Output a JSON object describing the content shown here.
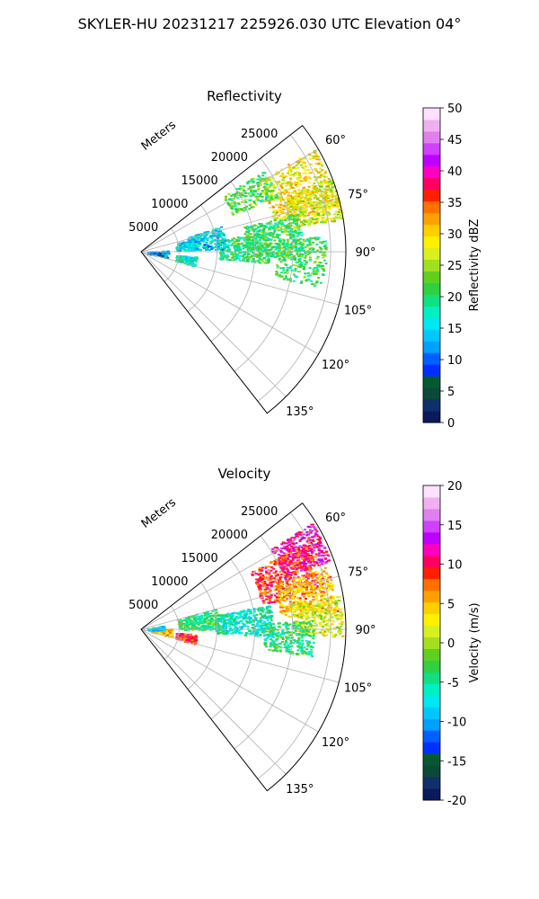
{
  "suptitle": "SKYLER-HU  20231217  225926.030 UTC Elevation 04°",
  "chart_data": [
    {
      "type": "heatmap",
      "title": "Reflectivity",
      "range_label": "Meters",
      "range_ticks": [
        5000,
        10000,
        15000,
        20000,
        25000
      ],
      "range_max": 27000,
      "azimuth_ticks": [
        "60°",
        "75°",
        "90°",
        "105°",
        "120°",
        "135°"
      ],
      "azimuth_range_deg": [
        52,
        142
      ],
      "colorbar": {
        "label": "Reflectivity dBZ",
        "vmin": 0,
        "vmax": 50,
        "ticks": [
          "0",
          "5",
          "10",
          "15",
          "20",
          "25",
          "30",
          "35",
          "40",
          "45",
          "50"
        ],
        "colors": [
          "#0a1a5a",
          "#10306a",
          "#0b4a38",
          "#065a30",
          "#0030ff",
          "#0060ff",
          "#00a0ff",
          "#00c8ff",
          "#00e8f0",
          "#00f0c0",
          "#10e080",
          "#30d040",
          "#60d020",
          "#a0e020",
          "#d8f020",
          "#fff000",
          "#ffd000",
          "#ffa000",
          "#ff7000",
          "#ff2000",
          "#ff0060",
          "#ff00c0",
          "#c000ff",
          "#d040ff",
          "#e080f0",
          "#f0b0f0",
          "#ffe0ff"
        ]
      }
    },
    {
      "type": "heatmap",
      "title": "Velocity",
      "range_label": "Meters",
      "range_ticks": [
        5000,
        10000,
        15000,
        20000,
        25000
      ],
      "range_max": 27000,
      "azimuth_ticks": [
        "60°",
        "75°",
        "90°",
        "105°",
        "120°",
        "135°"
      ],
      "azimuth_range_deg": [
        52,
        142
      ],
      "colorbar": {
        "label": "Velocity (m/s)",
        "vmin": -20,
        "vmax": 20,
        "ticks": [
          "-20",
          "-15",
          "-10",
          "-5",
          "0",
          "5",
          "10",
          "15",
          "20"
        ],
        "colors": [
          "#0a1a5a",
          "#10306a",
          "#0b4a38",
          "#065a30",
          "#0030ff",
          "#0060ff",
          "#00a0ff",
          "#00c8ff",
          "#00e8f0",
          "#00f0c0",
          "#10e080",
          "#30d040",
          "#60d020",
          "#a0e020",
          "#d8f020",
          "#fff000",
          "#ffd000",
          "#ffa000",
          "#ff7000",
          "#ff2000",
          "#ff0060",
          "#ff00c0",
          "#c000ff",
          "#d040ff",
          "#e080f0",
          "#f0b0f0",
          "#ffe0ff"
        ]
      }
    }
  ]
}
